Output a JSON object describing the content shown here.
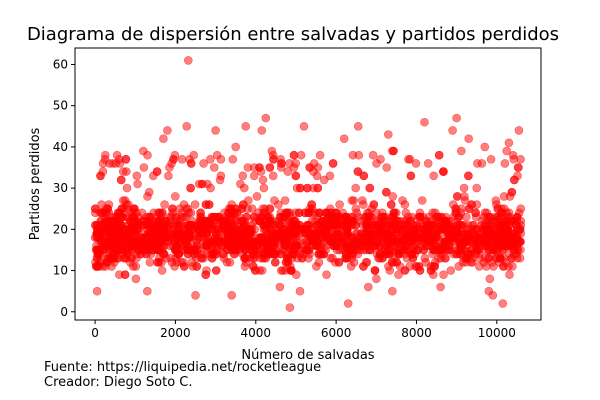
{
  "chart_data": {
    "type": "scatter",
    "title": "Diagrama de dispersión entre salvadas y partidos perdidos",
    "xlabel": "Número de salvadas",
    "ylabel": "Partidos perdidos",
    "xlim": [
      -500,
      11100
    ],
    "ylim": [
      -2,
      64
    ],
    "xticks": [
      0,
      2000,
      4000,
      6000,
      8000,
      10000
    ],
    "yticks": [
      0,
      10,
      20,
      30,
      40,
      50,
      60
    ],
    "grid": false,
    "marker_color": "#ff0000",
    "marker_alpha": 0.5,
    "x_range_of_points": [
      0,
      10600
    ],
    "typical_y_range": [
      5,
      32
    ],
    "points": [
      {
        "x": 2320,
        "y": 61
      },
      {
        "x": 2280,
        "y": 45
      },
      {
        "x": 1800,
        "y": 44
      },
      {
        "x": 4250,
        "y": 47
      },
      {
        "x": 4150,
        "y": 44
      },
      {
        "x": 3750,
        "y": 45
      },
      {
        "x": 3000,
        "y": 44
      },
      {
        "x": 5200,
        "y": 45
      },
      {
        "x": 6550,
        "y": 45
      },
      {
        "x": 7300,
        "y": 43
      },
      {
        "x": 8200,
        "y": 46
      },
      {
        "x": 9000,
        "y": 47
      },
      {
        "x": 8900,
        "y": 44
      },
      {
        "x": 10550,
        "y": 44
      },
      {
        "x": 9300,
        "y": 42
      },
      {
        "x": 6200,
        "y": 42
      },
      {
        "x": 4400,
        "y": 39
      },
      {
        "x": 3500,
        "y": 40
      },
      {
        "x": 1700,
        "y": 42
      },
      {
        "x": 600,
        "y": 37
      },
      {
        "x": 200,
        "y": 36
      },
      {
        "x": 10300,
        "y": 41
      },
      {
        "x": 9700,
        "y": 40
      },
      {
        "x": 7800,
        "y": 37
      },
      {
        "x": 5600,
        "y": 38
      },
      {
        "x": 2700,
        "y": 36
      },
      {
        "x": 1200,
        "y": 39
      },
      {
        "x": 4850,
        "y": 1
      },
      {
        "x": 6300,
        "y": 2
      },
      {
        "x": 10150,
        "y": 2
      },
      {
        "x": 9900,
        "y": 4
      },
      {
        "x": 9800,
        "y": 5
      },
      {
        "x": 2500,
        "y": 4
      },
      {
        "x": 3400,
        "y": 4
      },
      {
        "x": 50,
        "y": 5
      },
      {
        "x": 1300,
        "y": 5
      },
      {
        "x": 5100,
        "y": 5
      },
      {
        "x": 7400,
        "y": 5
      },
      {
        "x": 8600,
        "y": 6
      },
      {
        "x": 4600,
        "y": 6
      },
      {
        "x": 6800,
        "y": 6
      }
    ]
  },
  "footer": {
    "source": "Fuente: https://liquipedia.net/rocketleague",
    "creator": "Creador: Diego Soto C."
  }
}
